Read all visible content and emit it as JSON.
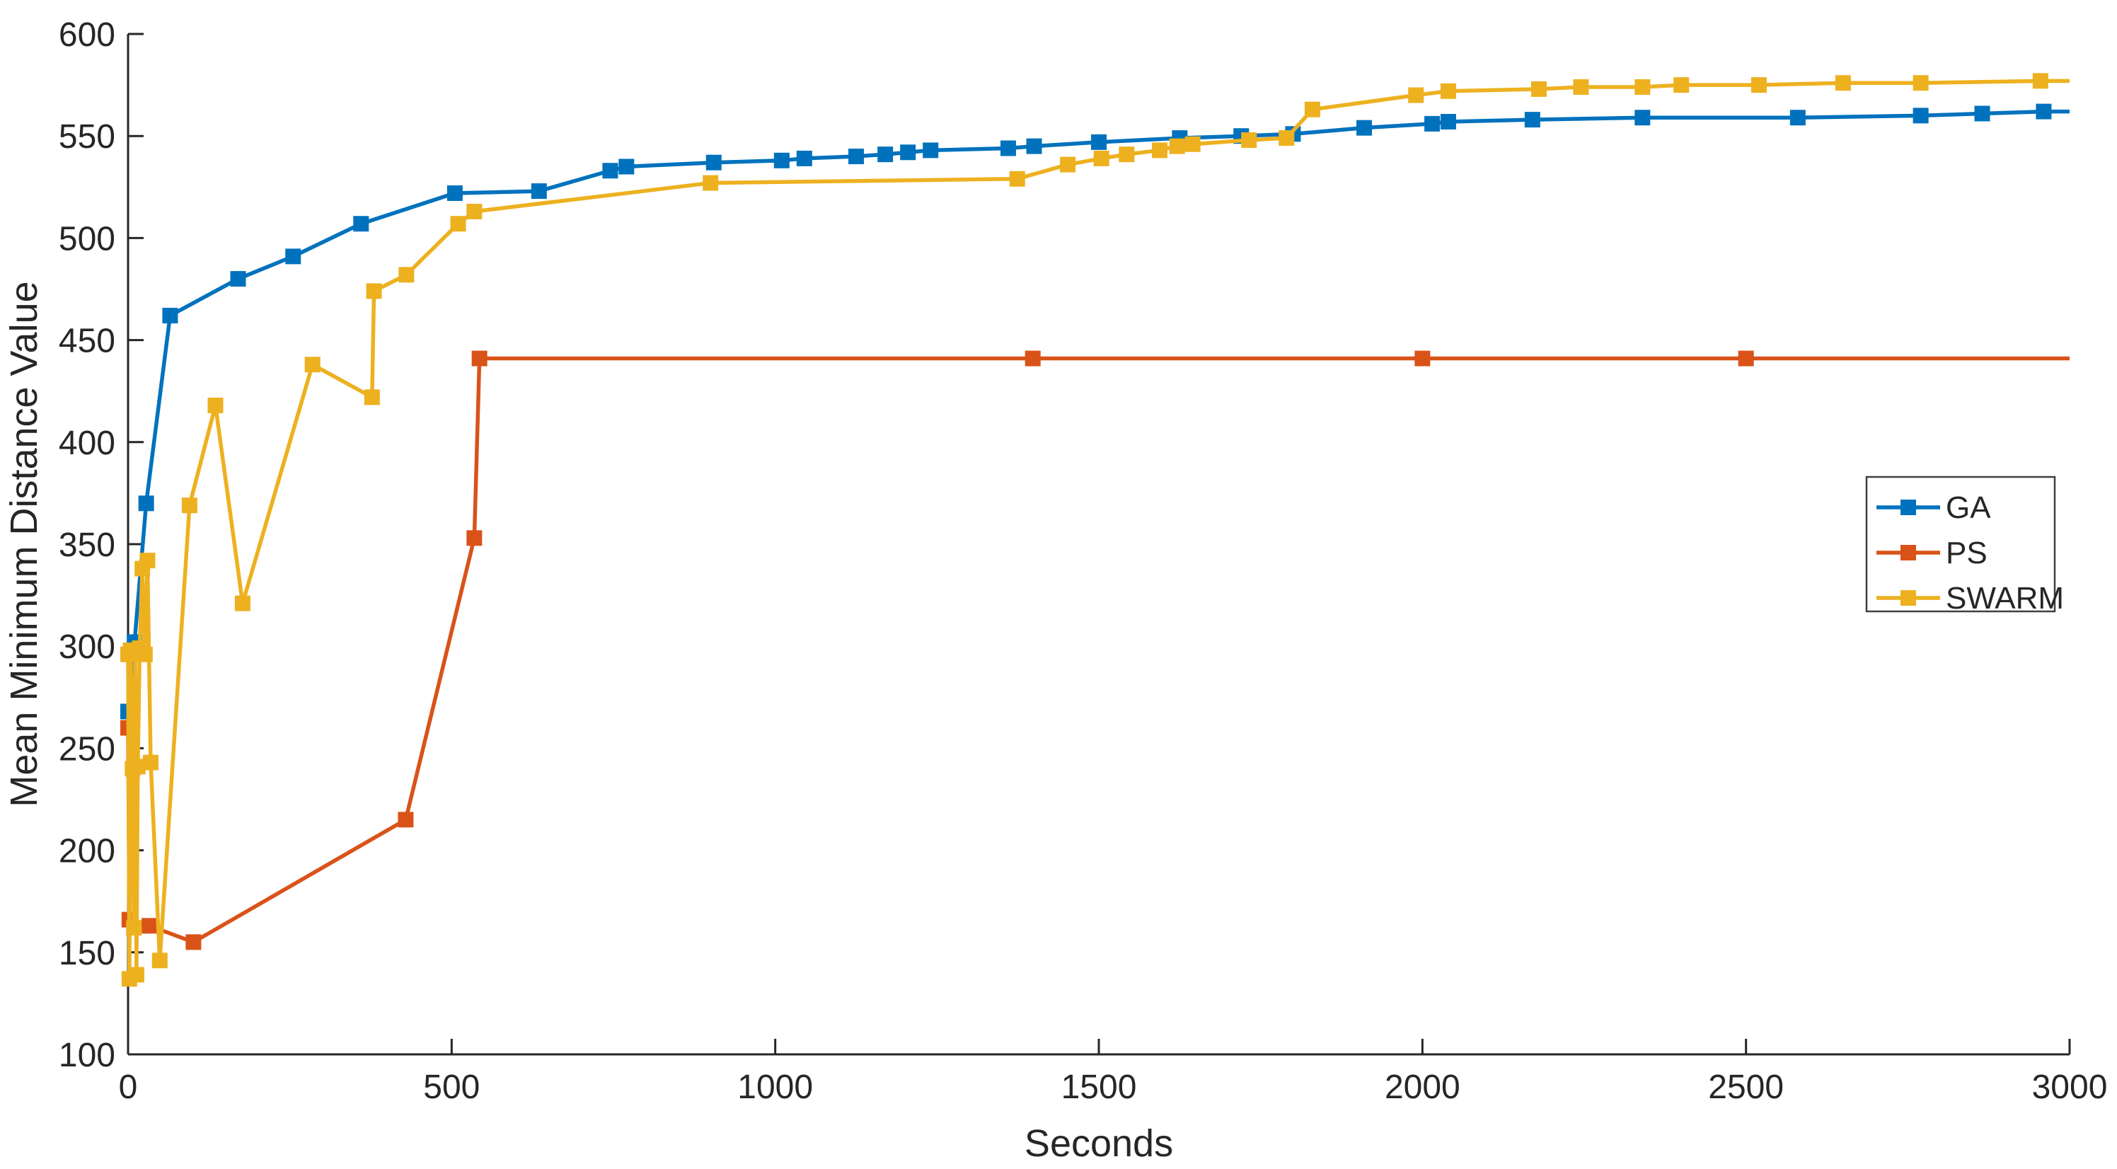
{
  "chart_data": {
    "type": "line",
    "title": "",
    "xlabel": "Seconds",
    "ylabel": "Mean Minimum Distance Value",
    "xlim": [
      0,
      3000
    ],
    "ylim": [
      100,
      600
    ],
    "xticks": [
      0,
      500,
      1000,
      1500,
      2000,
      2500,
      3000
    ],
    "yticks": [
      100,
      150,
      200,
      250,
      300,
      350,
      400,
      450,
      500,
      550,
      600
    ],
    "grid": false,
    "box": false,
    "tick_direction": "in",
    "background_color": "#ffffff",
    "axis_color": "#262626",
    "marker_style": "square",
    "legend": {
      "position": "right-middle",
      "border_color": "#404040",
      "background": "#ffffff",
      "entries": [
        "GA",
        "PS",
        "SWARM"
      ]
    },
    "series": [
      {
        "name": "GA",
        "color": "#0072BD",
        "line_end_x": 3000,
        "points": [
          [
            0,
            268
          ],
          [
            10,
            302
          ],
          [
            28,
            370
          ],
          [
            65,
            462
          ],
          [
            170,
            480
          ],
          [
            255,
            491
          ],
          [
            360,
            507
          ],
          [
            505,
            522
          ],
          [
            635,
            523
          ],
          [
            745,
            533
          ],
          [
            770,
            535
          ],
          [
            905,
            537
          ],
          [
            1010,
            538
          ],
          [
            1045,
            539
          ],
          [
            1125,
            540
          ],
          [
            1170,
            541
          ],
          [
            1205,
            542
          ],
          [
            1240,
            543
          ],
          [
            1360,
            544
          ],
          [
            1400,
            545
          ],
          [
            1500,
            547
          ],
          [
            1625,
            549
          ],
          [
            1720,
            550
          ],
          [
            1800,
            551
          ],
          [
            1910,
            554
          ],
          [
            2015,
            556
          ],
          [
            2040,
            557
          ],
          [
            2170,
            558
          ],
          [
            2340,
            559
          ],
          [
            2580,
            559
          ],
          [
            2770,
            560
          ],
          [
            2865,
            561
          ],
          [
            2960,
            562
          ]
        ]
      },
      {
        "name": "PS",
        "color": "#D95319",
        "line_end_x": 3000,
        "points": [
          [
            0,
            260
          ],
          [
            2,
            166
          ],
          [
            33,
            163
          ],
          [
            101,
            155
          ],
          [
            429,
            215
          ],
          [
            535,
            353
          ],
          [
            543,
            441
          ],
          [
            1398,
            441
          ],
          [
            2000,
            441
          ],
          [
            2500,
            441
          ]
        ]
      },
      {
        "name": "SWARM",
        "color": "#EDB120",
        "line_end_x": 3000,
        "points": [
          [
            0,
            296
          ],
          [
            2,
            137
          ],
          [
            4,
            298
          ],
          [
            7,
            240
          ],
          [
            9,
            162
          ],
          [
            11,
            297
          ],
          [
            13,
            139
          ],
          [
            15,
            241
          ],
          [
            18,
            299
          ],
          [
            22,
            338
          ],
          [
            26,
            296
          ],
          [
            30,
            342
          ],
          [
            35,
            243
          ],
          [
            49,
            146
          ],
          [
            95,
            369
          ],
          [
            135,
            418
          ],
          [
            177,
            321
          ],
          [
            285,
            438
          ],
          [
            377,
            422
          ],
          [
            380,
            474
          ],
          [
            430,
            482
          ],
          [
            510,
            507
          ],
          [
            535,
            513
          ],
          [
            900,
            527
          ],
          [
            1374,
            529
          ],
          [
            1452,
            536
          ],
          [
            1504,
            539
          ],
          [
            1543,
            541
          ],
          [
            1594,
            543
          ],
          [
            1621,
            545
          ],
          [
            1645,
            546
          ],
          [
            1732,
            548
          ],
          [
            1790,
            549
          ],
          [
            1830,
            563
          ],
          [
            1990,
            570
          ],
          [
            2040,
            572
          ],
          [
            2180,
            573
          ],
          [
            2245,
            574
          ],
          [
            2340,
            574
          ],
          [
            2400,
            575
          ],
          [
            2520,
            575
          ],
          [
            2650,
            576
          ],
          [
            2770,
            576
          ],
          [
            2955,
            577
          ]
        ]
      }
    ]
  }
}
